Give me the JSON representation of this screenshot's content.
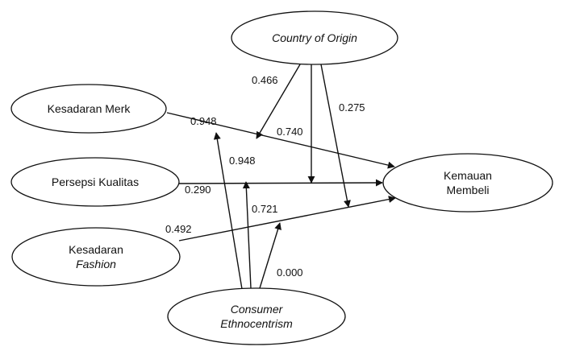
{
  "nodes": {
    "country_of_origin": {
      "lines": [
        "Country of Origin"
      ],
      "italic": [
        true
      ]
    },
    "kesadaran_merk": {
      "lines": [
        "Kesadaran Merk"
      ],
      "italic": [
        false
      ]
    },
    "persepsi_kualitas": {
      "lines": [
        "Persepsi Kualitas"
      ],
      "italic": [
        false
      ]
    },
    "kesadaran_fashion": {
      "lines": [
        "Kesadaran",
        "Fashion"
      ],
      "italic": [
        false,
        true
      ]
    },
    "kemauan_membeli": {
      "lines": [
        "Kemauan",
        "Membeli"
      ],
      "italic": [
        false,
        false
      ]
    },
    "consumer_ethnocentrism": {
      "lines": [
        "Consumer",
        "Ethnocentrism"
      ],
      "italic": [
        true,
        true
      ]
    }
  },
  "edges": [
    {
      "from": "kesadaran_merk",
      "to": "kemauan_membeli",
      "label": "0.948"
    },
    {
      "from": "persepsi_kualitas",
      "to": "kemauan_membeli",
      "label": "0.290"
    },
    {
      "from": "kesadaran_fashion",
      "to": "kemauan_membeli",
      "label": "0.492"
    },
    {
      "from": "country_of_origin",
      "to": "edge-kesadaran_merk",
      "label": "0.466"
    },
    {
      "from": "country_of_origin",
      "to": "edge-persepsi_kualitas",
      "label": "0.740"
    },
    {
      "from": "country_of_origin",
      "to": "edge-kesadaran_fashion",
      "label": "0.275"
    },
    {
      "from": "consumer_ethnocentrism",
      "to": "edge-kesadaran_merk",
      "label": "0.948"
    },
    {
      "from": "consumer_ethnocentrism",
      "to": "edge-persepsi_kualitas",
      "label": "0.721"
    },
    {
      "from": "consumer_ethnocentrism",
      "to": "edge-kesadaran_fashion",
      "label": "0.000"
    }
  ]
}
